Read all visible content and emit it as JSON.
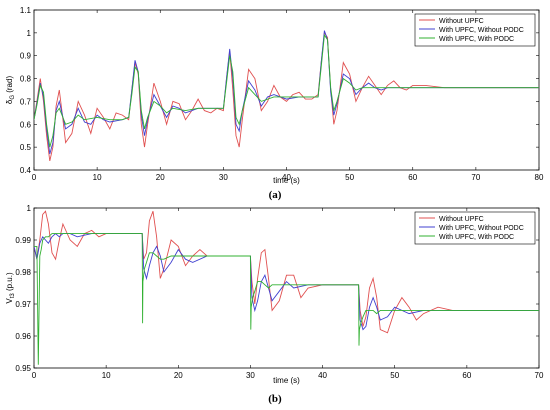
{
  "chart_data": [
    {
      "type": "line",
      "panel_label": "(a)",
      "xlabel": "time (s)",
      "ylabel_main": "δ",
      "ylabel_sub": "G",
      "ylabel_unit": "(rad)",
      "xlim": [
        0,
        80
      ],
      "ylim": [
        0.4,
        1.1
      ],
      "xticks": [
        0,
        10,
        20,
        30,
        40,
        50,
        60,
        70,
        80
      ],
      "yticks": [
        0.4,
        0.5,
        0.6,
        0.7,
        0.8,
        0.9,
        1,
        1.1
      ],
      "legend_position": "top-right",
      "series": [
        {
          "name": "Without UPFC",
          "color": "#e05050",
          "x": [
            0,
            0.5,
            1,
            1.5,
            2,
            2.5,
            3,
            3.5,
            4,
            4.5,
            5,
            6,
            7,
            8,
            9,
            10,
            11,
            12,
            13,
            14,
            15,
            15.5,
            16,
            16.5,
            17,
            17.5,
            18,
            19,
            20,
            21,
            22,
            23,
            24,
            25,
            26,
            27,
            28,
            29,
            30,
            30.5,
            31,
            31.5,
            32,
            32.5,
            33,
            34,
            35,
            36,
            37,
            38,
            39,
            40,
            41,
            42,
            43,
            44,
            45,
            45.5,
            46,
            46.5,
            47,
            47.5,
            48,
            49,
            50,
            51,
            52,
            53,
            54,
            55,
            56,
            57,
            58,
            59,
            60,
            62,
            65,
            70,
            75,
            80
          ],
          "y": [
            0.62,
            0.71,
            0.8,
            0.7,
            0.55,
            0.44,
            0.5,
            0.68,
            0.75,
            0.64,
            0.52,
            0.56,
            0.7,
            0.64,
            0.56,
            0.67,
            0.63,
            0.58,
            0.65,
            0.64,
            0.62,
            0.75,
            0.87,
            0.82,
            0.6,
            0.5,
            0.6,
            0.78,
            0.7,
            0.6,
            0.7,
            0.69,
            0.62,
            0.66,
            0.71,
            0.66,
            0.65,
            0.67,
            0.66,
            0.8,
            0.92,
            0.75,
            0.55,
            0.5,
            0.62,
            0.84,
            0.8,
            0.66,
            0.7,
            0.77,
            0.72,
            0.7,
            0.73,
            0.74,
            0.71,
            0.71,
            0.73,
            0.87,
            1.0,
            0.98,
            0.75,
            0.6,
            0.66,
            0.87,
            0.82,
            0.7,
            0.76,
            0.81,
            0.77,
            0.73,
            0.77,
            0.79,
            0.76,
            0.75,
            0.77,
            0.77,
            0.76,
            0.76,
            0.76,
            0.76
          ]
        },
        {
          "name": "With UPFC, Without PODC",
          "color": "#4040d0",
          "x": [
            0,
            0.5,
            1,
            1.5,
            2,
            2.5,
            3,
            3.5,
            4,
            5,
            6,
            7,
            8,
            9,
            10,
            11,
            12,
            14,
            15,
            15.5,
            16,
            16.5,
            17,
            17.5,
            18,
            19,
            20,
            21,
            22,
            23,
            24,
            26,
            28,
            30,
            30.5,
            31,
            31.5,
            32,
            32.5,
            33,
            34,
            35,
            36,
            37,
            38,
            40,
            42,
            44,
            45,
            45.5,
            46,
            46.5,
            47,
            47.5,
            48,
            49,
            50,
            51,
            52,
            53,
            54,
            55,
            56,
            58,
            60,
            65,
            70,
            80
          ],
          "y": [
            0.62,
            0.7,
            0.78,
            0.72,
            0.58,
            0.47,
            0.52,
            0.66,
            0.7,
            0.58,
            0.6,
            0.67,
            0.61,
            0.6,
            0.64,
            0.62,
            0.61,
            0.62,
            0.63,
            0.75,
            0.88,
            0.83,
            0.64,
            0.55,
            0.62,
            0.73,
            0.68,
            0.63,
            0.68,
            0.67,
            0.65,
            0.67,
            0.67,
            0.67,
            0.8,
            0.93,
            0.8,
            0.6,
            0.57,
            0.66,
            0.79,
            0.75,
            0.68,
            0.72,
            0.73,
            0.71,
            0.72,
            0.72,
            0.72,
            0.87,
            1.01,
            0.97,
            0.74,
            0.64,
            0.69,
            0.82,
            0.8,
            0.73,
            0.76,
            0.78,
            0.76,
            0.75,
            0.76,
            0.76,
            0.76,
            0.76,
            0.76,
            0.76
          ]
        },
        {
          "name": "With UPFC, With PODC",
          "color": "#30b030",
          "x": [
            0,
            0.5,
            1,
            1.5,
            2,
            2.5,
            3,
            3.5,
            4,
            5,
            6,
            7,
            8,
            10,
            12,
            14,
            15,
            15.5,
            16,
            16.5,
            17,
            17.5,
            18,
            19,
            20,
            21,
            22,
            24,
            26,
            28,
            30,
            30.5,
            31,
            31.5,
            32,
            32.5,
            33,
            34,
            35,
            36,
            38,
            40,
            42,
            44,
            45,
            45.5,
            46,
            46.5,
            47,
            47.5,
            48,
            49,
            50,
            51,
            52,
            54,
            56,
            58,
            60,
            65,
            70,
            80
          ],
          "y": [
            0.62,
            0.69,
            0.77,
            0.74,
            0.6,
            0.5,
            0.55,
            0.65,
            0.67,
            0.6,
            0.61,
            0.64,
            0.62,
            0.63,
            0.62,
            0.62,
            0.63,
            0.73,
            0.85,
            0.83,
            0.66,
            0.58,
            0.63,
            0.7,
            0.68,
            0.65,
            0.67,
            0.66,
            0.67,
            0.67,
            0.67,
            0.78,
            0.9,
            0.83,
            0.63,
            0.6,
            0.66,
            0.76,
            0.73,
            0.7,
            0.72,
            0.72,
            0.72,
            0.72,
            0.72,
            0.85,
            0.99,
            0.97,
            0.76,
            0.66,
            0.7,
            0.8,
            0.78,
            0.75,
            0.76,
            0.76,
            0.76,
            0.76,
            0.76,
            0.76,
            0.76,
            0.76
          ]
        }
      ]
    },
    {
      "type": "line",
      "panel_label": "(b)",
      "xlabel": "time (s)",
      "ylabel_main": "V",
      "ylabel_sub": "t3",
      "ylabel_unit": "(p.u.)",
      "xlim": [
        0,
        70
      ],
      "ylim": [
        0.95,
        1
      ],
      "xticks": [
        0,
        10,
        20,
        30,
        40,
        50,
        60,
        70
      ],
      "yticks": [
        0.95,
        0.96,
        0.97,
        0.98,
        0.99,
        1
      ],
      "legend_position": "top-right",
      "series": [
        {
          "name": "Without UPFC",
          "color": "#e05050",
          "x": [
            0,
            0.4,
            0.8,
            1.2,
            1.6,
            2,
            2.5,
            3,
            3.5,
            4,
            5,
            6,
            7,
            8,
            9,
            10,
            12,
            14,
            15,
            15.2,
            15.6,
            16,
            16.5,
            17,
            17.5,
            18,
            19,
            20,
            21,
            22,
            23,
            24,
            26,
            28,
            30,
            30.2,
            30.6,
            31,
            31.5,
            32,
            32.5,
            33,
            34,
            35,
            36,
            37,
            38,
            40,
            42,
            44,
            45,
            45.2,
            45.6,
            46,
            46.5,
            47,
            47.5,
            48,
            49,
            50,
            51,
            52,
            53,
            54,
            56,
            58,
            60,
            65,
            70
          ],
          "y": [
            0.988,
            0.984,
            0.99,
            0.998,
            0.999,
            0.995,
            0.986,
            0.984,
            0.99,
            0.995,
            0.99,
            0.988,
            0.992,
            0.993,
            0.991,
            0.992,
            0.992,
            0.992,
            0.992,
            0.984,
            0.986,
            0.996,
            0.999,
            0.991,
            0.978,
            0.981,
            0.99,
            0.988,
            0.982,
            0.985,
            0.987,
            0.985,
            0.985,
            0.985,
            0.985,
            0.977,
            0.97,
            0.978,
            0.986,
            0.987,
            0.978,
            0.968,
            0.971,
            0.979,
            0.979,
            0.972,
            0.975,
            0.976,
            0.976,
            0.976,
            0.976,
            0.968,
            0.963,
            0.966,
            0.975,
            0.978,
            0.972,
            0.962,
            0.961,
            0.968,
            0.972,
            0.969,
            0.965,
            0.967,
            0.969,
            0.968,
            0.968,
            0.968,
            0.968
          ]
        },
        {
          "name": "With UPFC, Without PODC",
          "color": "#4040d0",
          "x": [
            0,
            0.4,
            0.8,
            1.2,
            1.6,
            2,
            2.5,
            3,
            3.5,
            4,
            5,
            6,
            8,
            10,
            12,
            14,
            15,
            15.2,
            15.6,
            16,
            16.5,
            17,
            17.5,
            18,
            19,
            20,
            21,
            22,
            24,
            26,
            28,
            30,
            30.2,
            30.6,
            31,
            31.5,
            32,
            32.5,
            33,
            34,
            35,
            36,
            38,
            40,
            42,
            44,
            45,
            45.2,
            45.6,
            46,
            46.5,
            47,
            47.5,
            48,
            49,
            50,
            51,
            52,
            54,
            56,
            60,
            65,
            70
          ],
          "y": [
            0.988,
            0.984,
            0.989,
            0.991,
            0.99,
            0.989,
            0.991,
            0.992,
            0.991,
            0.992,
            0.992,
            0.991,
            0.992,
            0.992,
            0.992,
            0.992,
            0.992,
            0.981,
            0.978,
            0.982,
            0.986,
            0.988,
            0.985,
            0.98,
            0.983,
            0.987,
            0.984,
            0.983,
            0.985,
            0.985,
            0.985,
            0.985,
            0.972,
            0.968,
            0.971,
            0.977,
            0.979,
            0.975,
            0.971,
            0.974,
            0.977,
            0.975,
            0.976,
            0.976,
            0.976,
            0.976,
            0.976,
            0.965,
            0.962,
            0.963,
            0.969,
            0.972,
            0.969,
            0.965,
            0.966,
            0.969,
            0.968,
            0.967,
            0.968,
            0.968,
            0.968,
            0.968,
            0.968
          ]
        },
        {
          "name": "With UPFC, With PODC",
          "color": "#30b030",
          "x": [
            0,
            0.4,
            0.6,
            0.8,
            1.0,
            1.2,
            1.6,
            2,
            2.5,
            3,
            3.5,
            4,
            5,
            6,
            8,
            10,
            12,
            14,
            15,
            15.05,
            15.1,
            15.3,
            15.6,
            16,
            16.5,
            17,
            17.5,
            18,
            19,
            20,
            22,
            24,
            26,
            28,
            30,
            30.05,
            30.1,
            30.3,
            30.6,
            31,
            31.5,
            32,
            32.5,
            33,
            34,
            35,
            36,
            38,
            40,
            42,
            44,
            45,
            45.05,
            45.1,
            45.3,
            45.6,
            46,
            46.5,
            47,
            47.5,
            48,
            49,
            50,
            52,
            54,
            56,
            60,
            65,
            70
          ],
          "y": [
            0.988,
            0.988,
            0.951,
            0.985,
            0.987,
            0.99,
            0.991,
            0.991,
            0.992,
            0.992,
            0.992,
            0.992,
            0.992,
            0.992,
            0.992,
            0.992,
            0.992,
            0.992,
            0.992,
            0.964,
            0.977,
            0.981,
            0.983,
            0.986,
            0.986,
            0.985,
            0.984,
            0.984,
            0.985,
            0.985,
            0.985,
            0.985,
            0.985,
            0.985,
            0.985,
            0.962,
            0.969,
            0.972,
            0.974,
            0.977,
            0.977,
            0.976,
            0.975,
            0.976,
            0.976,
            0.976,
            0.976,
            0.976,
            0.976,
            0.976,
            0.976,
            0.976,
            0.957,
            0.962,
            0.964,
            0.966,
            0.968,
            0.968,
            0.968,
            0.967,
            0.968,
            0.968,
            0.968,
            0.968,
            0.968,
            0.968,
            0.968,
            0.968,
            0.968
          ]
        }
      ]
    }
  ]
}
